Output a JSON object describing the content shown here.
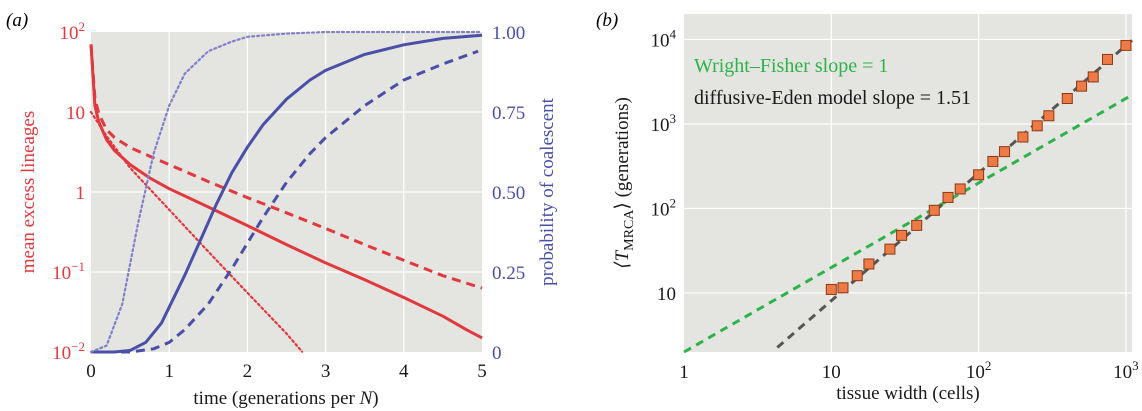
{
  "chart_data": [
    {
      "panel_label": "(a)",
      "type": "line",
      "xlabel": "time (generations per N)",
      "xlabel_prefix": "time (generations per ",
      "xlabel_var": "N",
      "xlabel_suffix": ")",
      "ylabel_left": "mean excess lineages",
      "ylabel_right": "probability of coalescent",
      "xlim": [
        0,
        5
      ],
      "ylim_left": [
        0.01,
        100
      ],
      "ylim_right": [
        0,
        1
      ],
      "left_scale": "log",
      "right_scale": "linear",
      "grid": true,
      "x_ticks": [
        "0",
        "1",
        "2",
        "3",
        "4",
        "5"
      ],
      "y_ticks_left": [
        {
          "base": "10",
          "exp": "2",
          "value": 100
        },
        {
          "base": "10",
          "exp": "",
          "value": 10
        },
        {
          "base": "1",
          "exp": "",
          "value": 1
        },
        {
          "base": "10",
          "exp": "−1",
          "value": 0.1
        },
        {
          "base": "10",
          "exp": "−2",
          "value": 0.01
        }
      ],
      "y_ticks_right": [
        "1.00",
        "0.75",
        "0.50",
        "0.25",
        "0"
      ],
      "colors": {
        "left_axis": "#e0393e",
        "right_axis": "#4a4fa8"
      },
      "series": [
        {
          "axis": "left",
          "style": "solid",
          "color": "#e0393e",
          "x": [
            0.0,
            0.05,
            0.1,
            0.2,
            0.3,
            0.5,
            0.75,
            1.0,
            1.5,
            2.0,
            2.5,
            3.0,
            3.5,
            4.0,
            4.5,
            4.8,
            5.0
          ],
          "y": [
            70,
            12,
            7.5,
            4.5,
            3.3,
            2.2,
            1.5,
            1.1,
            0.65,
            0.38,
            0.22,
            0.13,
            0.08,
            0.048,
            0.028,
            0.019,
            0.015
          ]
        },
        {
          "axis": "left",
          "style": "dashed",
          "color": "#e0393e",
          "x": [
            0.0,
            0.05,
            0.1,
            0.2,
            0.3,
            0.5,
            0.75,
            1.0,
            1.5,
            2.0,
            2.5,
            3.0,
            3.5,
            4.0,
            4.5,
            5.0
          ],
          "y": [
            70,
            15,
            9.5,
            6.0,
            4.8,
            3.6,
            2.8,
            2.2,
            1.35,
            0.85,
            0.55,
            0.35,
            0.22,
            0.14,
            0.09,
            0.063
          ]
        },
        {
          "axis": "left",
          "style": "dotted",
          "color": "#e0393e",
          "x": [
            0.0,
            0.2,
            0.5,
            1.0,
            1.5,
            2.0,
            2.5,
            2.7
          ],
          "y": [
            10,
            5.0,
            2.0,
            0.6,
            0.18,
            0.055,
            0.017,
            0.01
          ]
        },
        {
          "axis": "right",
          "style": "solid",
          "color": "#4a4fa8",
          "x": [
            0.0,
            0.3,
            0.5,
            0.7,
            0.9,
            1.0,
            1.2,
            1.4,
            1.6,
            1.8,
            2.0,
            2.2,
            2.5,
            2.8,
            3.0,
            3.5,
            4.0,
            4.5,
            5.0
          ],
          "y": [
            0.0,
            0.0,
            0.005,
            0.03,
            0.09,
            0.14,
            0.24,
            0.35,
            0.46,
            0.56,
            0.64,
            0.71,
            0.79,
            0.85,
            0.88,
            0.93,
            0.96,
            0.98,
            0.99
          ]
        },
        {
          "axis": "right",
          "style": "dashed",
          "color": "#4a4fa8",
          "x": [
            0.0,
            0.5,
            0.8,
            1.0,
            1.2,
            1.5,
            1.8,
            2.0,
            2.2,
            2.5,
            2.8,
            3.0,
            3.5,
            4.0,
            4.5,
            4.95
          ],
          "y": [
            0.0,
            0.0,
            0.01,
            0.03,
            0.07,
            0.15,
            0.26,
            0.34,
            0.42,
            0.53,
            0.62,
            0.67,
            0.77,
            0.85,
            0.9,
            0.94
          ]
        },
        {
          "axis": "right",
          "style": "dotted",
          "color": "#8080cc",
          "x": [
            0.0,
            0.2,
            0.4,
            0.6,
            0.8,
            1.0,
            1.2,
            1.5,
            1.8,
            2.0,
            2.5,
            3.0,
            4.0,
            5.0
          ],
          "y": [
            0.0,
            0.02,
            0.15,
            0.4,
            0.62,
            0.77,
            0.87,
            0.94,
            0.97,
            0.985,
            0.995,
            1.0,
            1.0,
            1.0
          ]
        }
      ]
    },
    {
      "panel_label": "(b)",
      "type": "scatter",
      "xlabel": "tissue width (cells)",
      "ylabel_base": "⟨T",
      "ylabel_sub": "MRCA",
      "ylabel_suffix": "⟩ (generations)",
      "xlim": [
        1,
        1100
      ],
      "ylim": [
        2,
        20000
      ],
      "x_scale": "log",
      "y_scale": "log",
      "grid": true,
      "x_ticks": [
        {
          "base": "1",
          "exp": "",
          "value": 1
        },
        {
          "base": "10",
          "exp": "",
          "value": 10
        },
        {
          "base": "10",
          "exp": "2",
          "value": 100
        },
        {
          "base": "10",
          "exp": "3",
          "value": 1000
        }
      ],
      "y_ticks": [
        {
          "base": "10",
          "exp": "",
          "value": 10
        },
        {
          "base": "10",
          "exp": "2",
          "value": 100
        },
        {
          "base": "10",
          "exp": "3",
          "value": 1000
        },
        {
          "base": "10",
          "exp": "4",
          "value": 10000
        }
      ],
      "legend_lines": [
        {
          "text": "Wright–Fisher slope = 1",
          "color": "#2db34a"
        },
        {
          "text": "diffusive-Eden model slope = 1.51",
          "color": "#1a1a1a"
        }
      ],
      "points": {
        "color": "#ee7a45",
        "x": [
          10,
          12,
          15,
          18,
          25,
          30,
          38,
          50,
          62,
          75,
          100,
          125,
          150,
          200,
          250,
          300,
          400,
          500,
          600,
          750,
          1000
        ],
        "y": [
          11,
          11.5,
          16,
          22,
          33,
          48,
          63,
          95,
          135,
          170,
          250,
          360,
          470,
          700,
          950,
          1250,
          2000,
          2800,
          3600,
          5800,
          8500
        ]
      },
      "fit_lines": [
        {
          "name": "Wright–Fisher slope = 1",
          "slope": 1,
          "intercept_y_at_x1": 2,
          "x_range": [
            1,
            1100
          ],
          "color": "#2db34a"
        },
        {
          "name": "diffusive-Eden model slope = 1.51",
          "slope": 1.51,
          "intercept_y_at_x1": 0.25,
          "x_range": [
            4.3,
            1100
          ],
          "color": "#555555"
        }
      ]
    }
  ]
}
